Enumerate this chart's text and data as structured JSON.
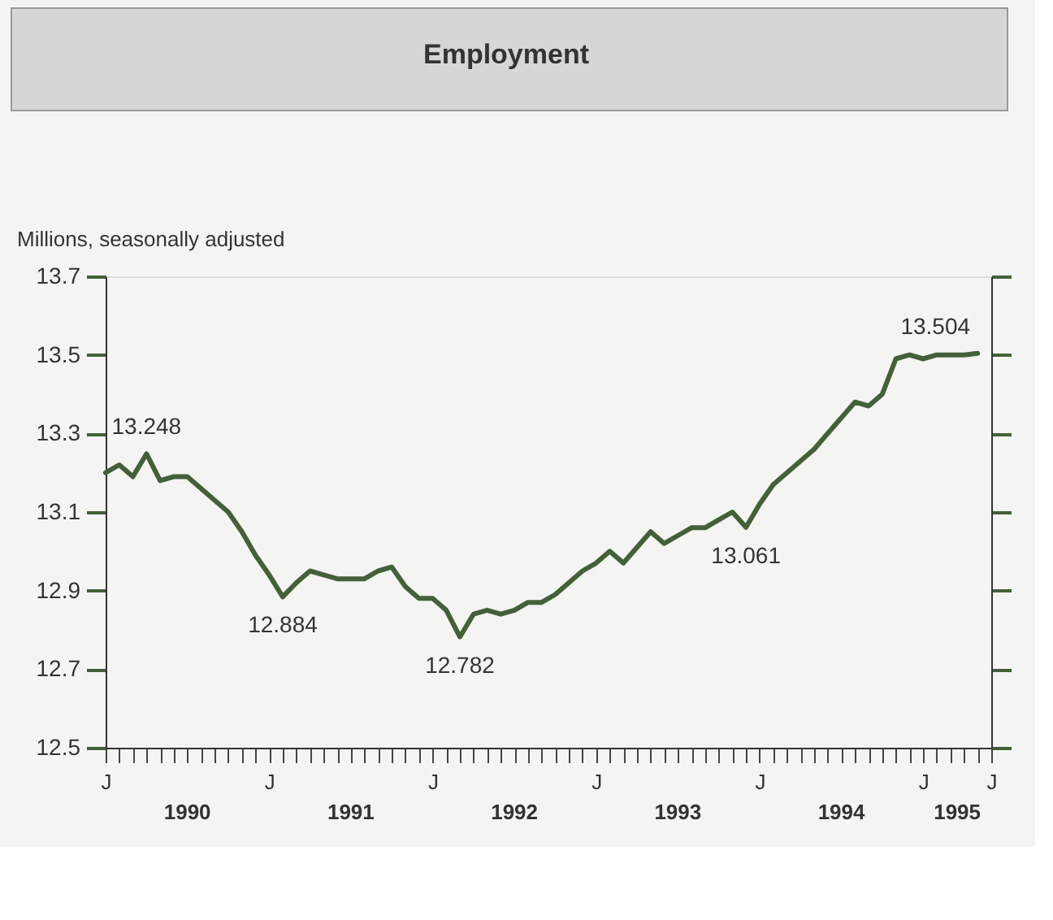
{
  "chart_data": {
    "type": "line",
    "title": "Employment",
    "ylabel": "Millions, seasonally adjusted",
    "categories": [
      "J",
      null,
      null,
      null,
      null,
      null,
      null,
      null,
      null,
      null,
      null,
      null,
      "J",
      null,
      null,
      null,
      null,
      null,
      null,
      null,
      null,
      null,
      null,
      null,
      "J",
      null,
      null,
      null,
      null,
      null,
      null,
      null,
      null,
      null,
      null,
      null,
      "J",
      null,
      null,
      null,
      null,
      null,
      null,
      null,
      null,
      null,
      null,
      null,
      "J",
      null,
      null,
      null,
      null,
      null,
      null,
      null,
      null,
      null,
      null,
      null,
      "J",
      null,
      null,
      null,
      null,
      "J"
    ],
    "series": [
      {
        "color": "#44603a",
        "values": [
          13.2,
          13.22,
          13.19,
          13.248,
          13.18,
          13.19,
          13.19,
          13.16,
          13.13,
          13.1,
          13.05,
          12.99,
          12.94,
          12.884,
          12.92,
          12.95,
          12.94,
          12.93,
          12.93,
          12.93,
          12.95,
          12.96,
          12.91,
          12.88,
          12.88,
          12.85,
          12.782,
          12.84,
          12.85,
          12.84,
          12.85,
          12.87,
          12.87,
          12.89,
          12.92,
          12.95,
          12.97,
          13.0,
          12.97,
          13.01,
          13.05,
          13.02,
          13.04,
          13.06,
          13.06,
          13.08,
          13.1,
          13.061,
          13.12,
          13.17,
          13.2,
          13.23,
          13.26,
          13.3,
          13.34,
          13.38,
          13.37,
          13.4,
          13.49,
          13.5,
          13.49,
          13.5,
          13.5,
          13.5,
          13.504,
          null
        ]
      }
    ],
    "ylim": [
      12.5,
      13.7
    ],
    "yticks": [
      12.5,
      12.7,
      12.9,
      13.1,
      13.3,
      13.5,
      13.7
    ],
    "annotations": [
      {
        "text": "13.248",
        "y": 13.248
      },
      {
        "text": "12.884",
        "y": 12.884
      },
      {
        "text": "12.782",
        "y": 12.782
      },
      {
        "text": "13.061",
        "y": 13.061
      },
      {
        "text": "13.504",
        "y": 13.504
      },
      "1990",
      "1991",
      "1992",
      "1993",
      "1994",
      "1995"
    ],
    "grid": false,
    "marker": "none",
    "line_style": "solid"
  }
}
